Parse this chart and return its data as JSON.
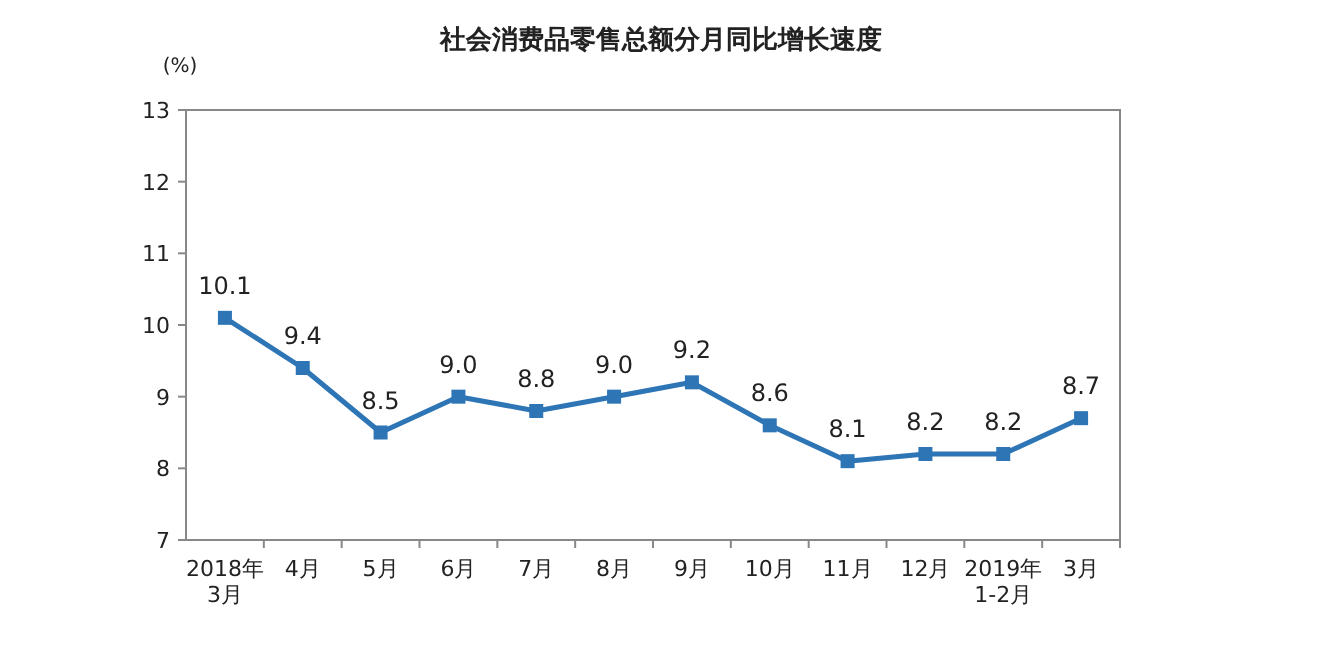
{
  "chart_data": {
    "type": "line",
    "title": "社会消费品零售总额分月同比增长速度",
    "ylabel": "(%)",
    "categories": [
      "2018年\n3月",
      "4月",
      "5月",
      "6月",
      "7月",
      "8月",
      "9月",
      "10月",
      "11月",
      "12月",
      "2019年\n1-2月",
      "3月"
    ],
    "series": [
      {
        "color": "#2e75b6",
        "values": [
          10.1,
          9.4,
          8.5,
          9.0,
          8.8,
          9.0,
          9.2,
          8.6,
          8.1,
          8.2,
          8.2,
          8.7
        ],
        "value_labels": [
          "10.1",
          "9.4",
          "8.5",
          "9.0",
          "8.8",
          "9.0",
          "9.2",
          "8.6",
          "8.1",
          "8.2",
          "8.2",
          "8.7"
        ]
      }
    ],
    "ylim": [
      7,
      13
    ],
    "yticks": [
      7,
      8,
      9,
      10,
      11,
      12,
      13
    ],
    "marker": "square",
    "line_style": "solid",
    "grid": false
  }
}
